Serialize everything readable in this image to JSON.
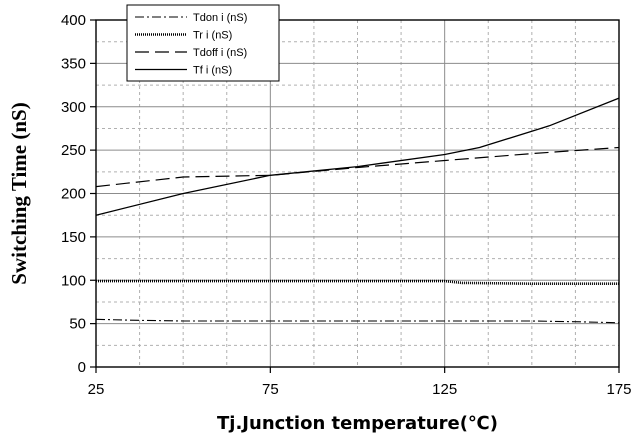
{
  "chart_data": {
    "type": "line",
    "title": "",
    "xlabel": "Tj.Junction temperature(℃)",
    "ylabel": "Switching Time (nS)",
    "xlim": [
      25,
      175
    ],
    "ylim": [
      0,
      400
    ],
    "xticks": [
      "25",
      "75",
      "125",
      "175"
    ],
    "yticks": [
      "0",
      "50",
      "100",
      "150",
      "200",
      "250",
      "300",
      "350",
      "400"
    ],
    "grid": true,
    "legend_position": "top-left",
    "series": [
      {
        "name": "Tdon i (nS)",
        "style": "dash-dot",
        "color": "#000000",
        "x": [
          25,
          35,
          50,
          75,
          100,
          125,
          150,
          165,
          175
        ],
        "y": [
          55,
          54,
          53,
          53,
          53,
          53,
          53,
          52,
          51
        ]
      },
      {
        "name": "Tr i (nS)",
        "style": "dotted-thick",
        "color": "#000000",
        "x": [
          25,
          50,
          75,
          100,
          125,
          130,
          150,
          175
        ],
        "y": [
          99,
          99,
          99,
          99,
          99,
          97,
          96,
          96
        ]
      },
      {
        "name": "Tdoff i (nS)",
        "style": "dashed",
        "color": "#000000",
        "x": [
          25,
          50,
          75,
          100,
          125,
          150,
          175
        ],
        "y": [
          208,
          219,
          221,
          230,
          238,
          246,
          253
        ]
      },
      {
        "name": "Tf i (nS)",
        "style": "solid",
        "color": "#000000",
        "x": [
          25,
          50,
          75,
          100,
          125,
          135,
          155,
          175
        ],
        "y": [
          175,
          200,
          221,
          231,
          245,
          253,
          278,
          310
        ]
      }
    ]
  }
}
